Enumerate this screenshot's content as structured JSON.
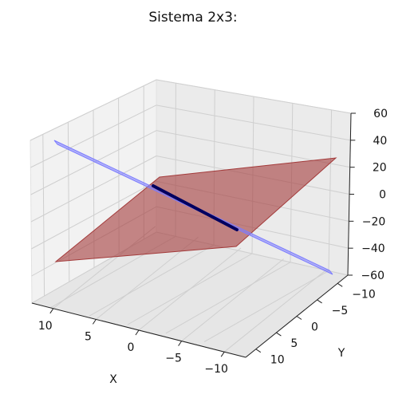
{
  "chart_data": {
    "type": "surface3d",
    "title": "Sistema 2x3:",
    "xlabel": "X",
    "ylabel": "Y",
    "zlabel": "",
    "xlim": [
      -10,
      10
    ],
    "ylim": [
      -10,
      10
    ],
    "zlim": [
      -60,
      60
    ],
    "x_ticks": [
      "10",
      "5",
      "0",
      "−5",
      "−10"
    ],
    "y_ticks": [
      "−10",
      "−5",
      "0",
      "5",
      "10"
    ],
    "z_ticks": [
      "60",
      "40",
      "20",
      "0",
      "−20",
      "−40",
      "−60"
    ],
    "grid": true,
    "surfaces": [
      {
        "color": "#a33a3a"
      },
      {
        "color": "#7b7bff"
      }
    ],
    "intersection_line": {
      "color": "#000060"
    }
  }
}
